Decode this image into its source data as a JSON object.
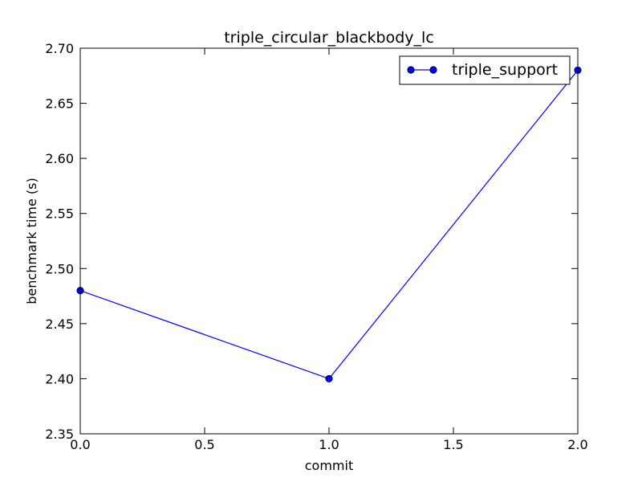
{
  "chart_data": {
    "type": "line",
    "title": "triple_circular_blackbody_lc",
    "xlabel": "commit",
    "ylabel": "benchmark time (s)",
    "xlim": [
      0.0,
      2.0
    ],
    "ylim": [
      2.35,
      2.7
    ],
    "xticks": [
      "0.0",
      "0.5",
      "1.0",
      "1.5",
      "2.0"
    ],
    "yticks": [
      "2.35",
      "2.40",
      "2.45",
      "2.50",
      "2.55",
      "2.60",
      "2.65",
      "2.70"
    ],
    "grid": false,
    "legend_position": "top-right",
    "series": [
      {
        "name": "triple_support",
        "color": "#0000ff",
        "marker": "circle",
        "x": [
          0.0,
          1.0,
          2.0
        ],
        "y": [
          2.48,
          2.4,
          2.68
        ]
      }
    ]
  }
}
